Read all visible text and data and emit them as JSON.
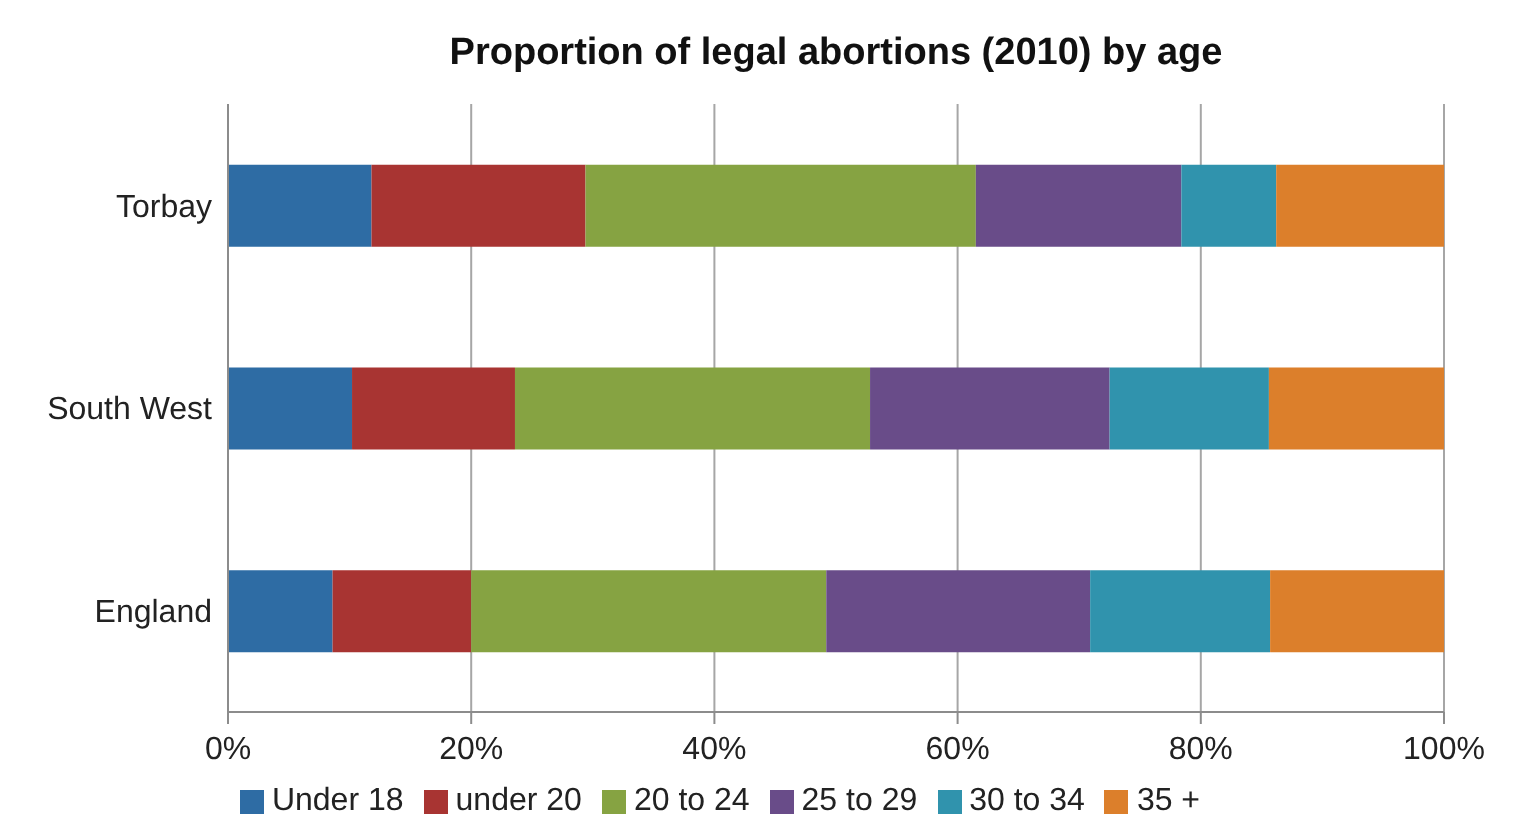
{
  "chart_data": {
    "type": "bar",
    "orientation": "horizontal",
    "stacked": true,
    "title": "Proportion of legal abortions (2010) by age",
    "categories": [
      "Torbay",
      "South West",
      "England"
    ],
    "series": [
      {
        "name": "Under 18",
        "color": "#2e6ca4",
        "values": [
          11.8,
          10.2,
          8.6
        ]
      },
      {
        "name": "under 20",
        "color": "#a83432",
        "values": [
          17.6,
          13.4,
          11.4
        ]
      },
      {
        "name": "20 to 24",
        "color": "#86a342",
        "values": [
          32.1,
          29.2,
          29.2
        ]
      },
      {
        "name": "25 to 29",
        "color": "#694c89",
        "values": [
          16.9,
          19.7,
          21.7
        ]
      },
      {
        "name": "30 to 34",
        "color": "#3093ad",
        "values": [
          7.8,
          13.1,
          14.8
        ]
      },
      {
        "name": "35 +",
        "color": "#dc7f2b",
        "values": [
          13.8,
          14.4,
          14.3
        ]
      }
    ],
    "xlim": [
      0,
      100
    ],
    "xticks": [
      {
        "value": 0,
        "label": "0%"
      },
      {
        "value": 20,
        "label": "20%"
      },
      {
        "value": 40,
        "label": "40%"
      },
      {
        "value": 60,
        "label": "60%"
      },
      {
        "value": 80,
        "label": "80%"
      },
      {
        "value": 100,
        "label": "100%"
      }
    ],
    "grid": "x",
    "legend": "bottom"
  }
}
